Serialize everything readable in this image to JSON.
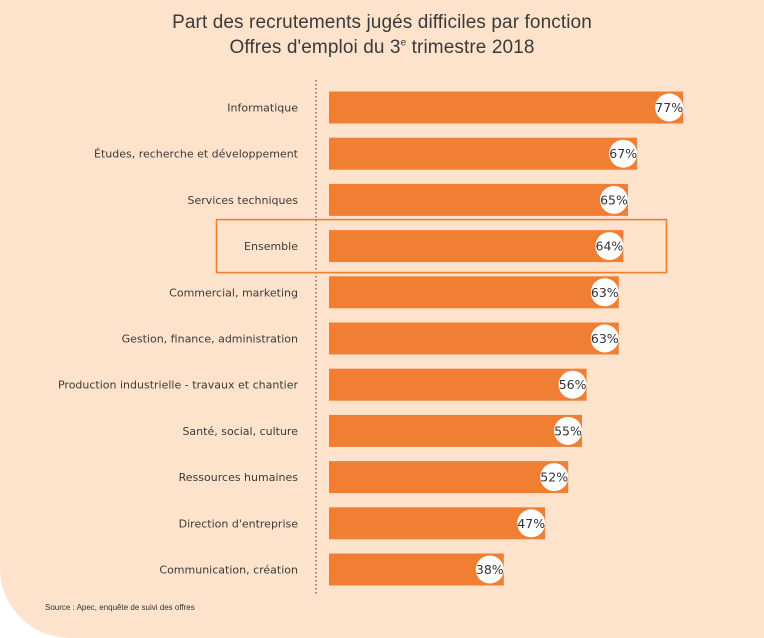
{
  "title_line1": "Part des recrutements jugés difficiles par fonction",
  "title_line2_prefix": "Offres d'emploi du 3",
  "title_line2_sup": "e",
  "title_line2_suffix": " trimestre 2018",
  "source": "Source : Apec, enquête de suivi des offres",
  "colors": {
    "background": "#fde3cc",
    "bar": "#f07f34",
    "highlight_border": "#f07f34",
    "value_circle": "#ffffff"
  },
  "chart_data": {
    "type": "bar",
    "orientation": "horizontal",
    "unit": "%",
    "highlighted_category": "Ensemble",
    "categories": [
      "Informatique",
      "Études, recherche et développement",
      "Services techniques",
      "Ensemble",
      "Commercial, marketing",
      "Gestion, finance, administration",
      "Production industrielle - travaux et chantier",
      "Santé, social, culture",
      "Ressources humaines",
      "Direction d'entreprise",
      "Communication, création"
    ],
    "values": [
      77,
      67,
      65,
      64,
      63,
      63,
      56,
      55,
      52,
      47,
      38
    ],
    "value_labels": [
      "77%",
      "67%",
      "65%",
      "64%",
      "63%",
      "63%",
      "56%",
      "55%",
      "52%",
      "47%",
      "38%"
    ]
  }
}
